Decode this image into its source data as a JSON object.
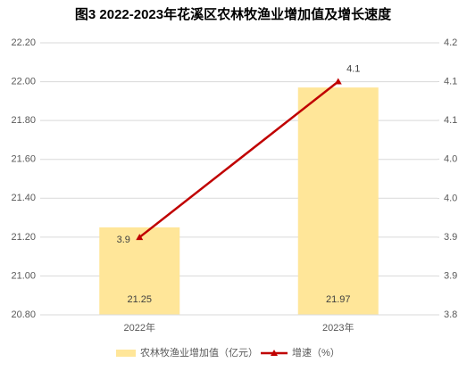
{
  "chart_data": {
    "type": "bar",
    "title": "图3  2022-2023年花溪区农林牧渔业增加值及增长速度",
    "categories": [
      "2022年",
      "2023年"
    ],
    "series": [
      {
        "name": "农林牧渔业增加值（亿元）",
        "type": "bar",
        "color": "#ffe699",
        "values": [
          21.25,
          21.97
        ]
      },
      {
        "name": "增速（%）",
        "type": "line",
        "axis": "y2",
        "color": "#c00000",
        "values": [
          3.914,
          4.143
        ],
        "value_labels": [
          "3.9",
          "4.1"
        ]
      }
    ],
    "ylim": [
      20.8,
      22.2
    ],
    "yticks": [
      {
        "value": 20.8,
        "label": "20.80"
      },
      {
        "value": 21.0,
        "label": "21.00"
      },
      {
        "value": 21.2,
        "label": "21.20"
      },
      {
        "value": 21.4,
        "label": "21.40"
      },
      {
        "value": 21.6,
        "label": "21.60"
      },
      {
        "value": 21.8,
        "label": "21.80"
      },
      {
        "value": 22.0,
        "label": "22.00"
      },
      {
        "value": 22.2,
        "label": "22.20"
      }
    ],
    "y2lim": [
      3.8,
      4.2
    ],
    "y2ticks": [
      3.8,
      {
        "value": 3.857,
        "label": "3.9"
      },
      {
        "value": 3.914,
        "label": "3.9"
      },
      {
        "value": 3.971,
        "label": "4.0"
      },
      {
        "value": 4.029,
        "label": "4.0"
      },
      {
        "value": 4.086,
        "label": "4.1"
      },
      {
        "value": 4.143,
        "label": "4.1"
      },
      4.2
    ],
    "grid": true,
    "legend": "bottom"
  }
}
